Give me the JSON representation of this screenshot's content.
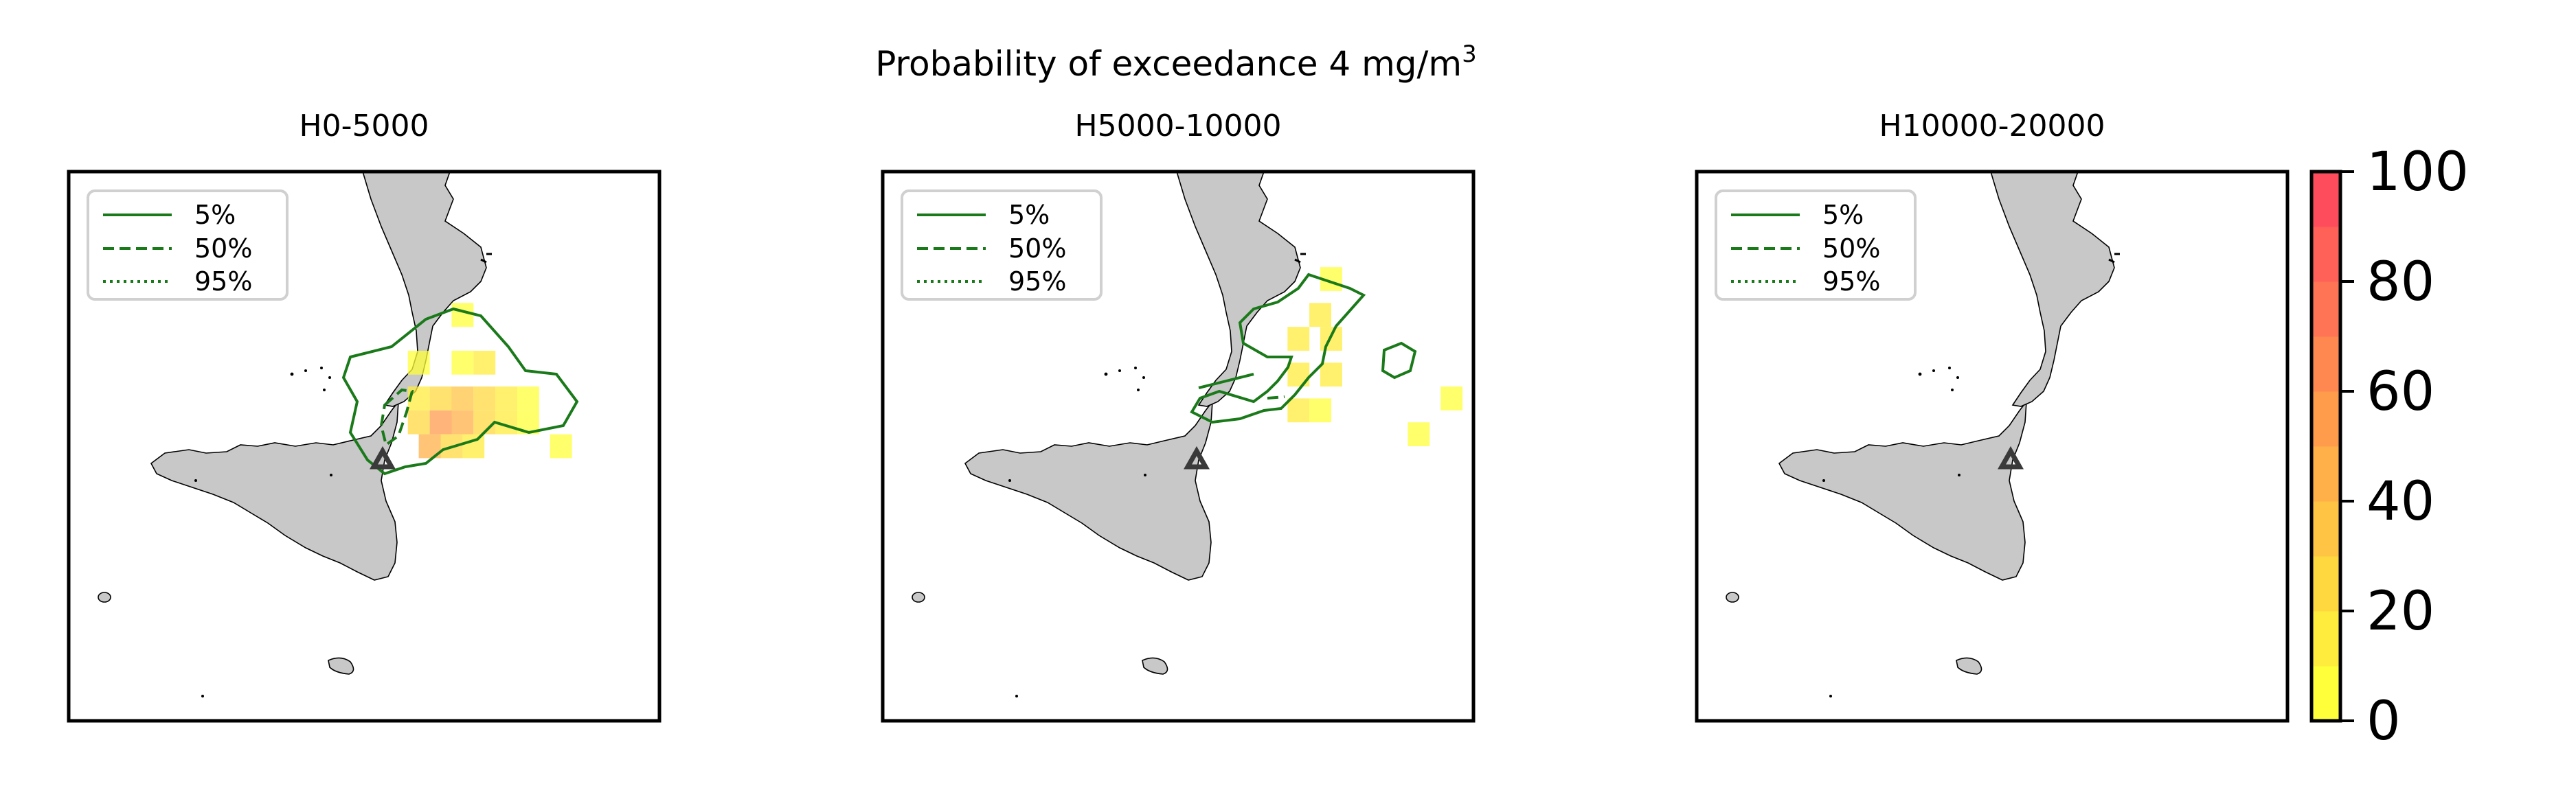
{
  "figure": {
    "suptitle": "Probability of exceedance 4 mg/m",
    "suptitle_sup": "3"
  },
  "panels": [
    {
      "title": "H0-5000",
      "legend": [
        {
          "label": "5%",
          "style": "solid"
        },
        {
          "label": "50%",
          "style": "dashed"
        },
        {
          "label": "95%",
          "style": "dotted"
        }
      ],
      "probability_cells": [
        {
          "lon": 15.2,
          "lat": 38.6,
          "p": 5
        },
        {
          "lon": 15.6,
          "lat": 38.6,
          "p": 5
        },
        {
          "lon": 15.8,
          "lat": 38.6,
          "p": 10
        },
        {
          "lon": 15.2,
          "lat": 38.3,
          "p": 15
        },
        {
          "lon": 15.4,
          "lat": 38.3,
          "p": 25
        },
        {
          "lon": 15.6,
          "lat": 38.3,
          "p": 30
        },
        {
          "lon": 15.8,
          "lat": 38.3,
          "p": 20
        },
        {
          "lon": 16.0,
          "lat": 38.3,
          "p": 10
        },
        {
          "lon": 16.2,
          "lat": 38.3,
          "p": 5
        },
        {
          "lon": 15.2,
          "lat": 38.1,
          "p": 20
        },
        {
          "lon": 15.4,
          "lat": 38.1,
          "p": 55
        },
        {
          "lon": 15.6,
          "lat": 38.1,
          "p": 45
        },
        {
          "lon": 15.8,
          "lat": 38.1,
          "p": 25
        },
        {
          "lon": 16.0,
          "lat": 38.1,
          "p": 10
        },
        {
          "lon": 16.2,
          "lat": 38.1,
          "p": 5
        },
        {
          "lon": 15.3,
          "lat": 37.9,
          "p": 40
        },
        {
          "lon": 15.5,
          "lat": 37.9,
          "p": 25
        },
        {
          "lon": 15.7,
          "lat": 37.9,
          "p": 10
        },
        {
          "lon": 16.5,
          "lat": 37.9,
          "p": 5
        },
        {
          "lon": 15.6,
          "lat": 39.0,
          "p": 5
        }
      ],
      "contours": [
        "5%",
        "50%"
      ],
      "volcano_marker": true
    },
    {
      "title": "H5000-10000",
      "legend": [
        {
          "label": "5%",
          "style": "solid"
        },
        {
          "label": "50%",
          "style": "dashed"
        },
        {
          "label": "95%",
          "style": "dotted"
        }
      ],
      "probability_cells": [
        {
          "lon": 16.1,
          "lat": 39.3,
          "p": 5
        },
        {
          "lon": 16.0,
          "lat": 39.0,
          "p": 10
        },
        {
          "lon": 15.8,
          "lat": 38.8,
          "p": 15
        },
        {
          "lon": 16.1,
          "lat": 38.8,
          "p": 10
        },
        {
          "lon": 15.8,
          "lat": 38.5,
          "p": 15
        },
        {
          "lon": 16.1,
          "lat": 38.5,
          "p": 10
        },
        {
          "lon": 15.8,
          "lat": 38.2,
          "p": 10
        },
        {
          "lon": 16.0,
          "lat": 38.2,
          "p": 5
        },
        {
          "lon": 17.2,
          "lat": 38.3,
          "p": 5
        },
        {
          "lon": 16.9,
          "lat": 38.0,
          "p": 5
        }
      ],
      "contours": [
        "5%",
        "50%"
      ],
      "volcano_marker": true
    },
    {
      "title": "H10000-20000",
      "legend": [
        {
          "label": "5%",
          "style": "solid"
        },
        {
          "label": "50%",
          "style": "dashed"
        },
        {
          "label": "95%",
          "style": "dotted"
        }
      ],
      "probability_cells": [],
      "contours": [],
      "volcano_marker": true
    }
  ],
  "colorbar": {
    "ticks": [
      "0",
      "20",
      "40",
      "60",
      "80",
      "100"
    ],
    "min": 0,
    "max": 100,
    "colors": [
      "#ffff3a",
      "#ffec3c",
      "#ffd840",
      "#ffc444",
      "#ffb048",
      "#ff9c4c",
      "#ff8850",
      "#ff7454",
      "#ff6058",
      "#ff4c5c"
    ]
  },
  "colors": {
    "land": "#c8c8c8",
    "contour": "#1a7a1a",
    "volcano": "#3a3a3a",
    "low": "#ffff3a",
    "high": "#ff4c5c"
  }
}
